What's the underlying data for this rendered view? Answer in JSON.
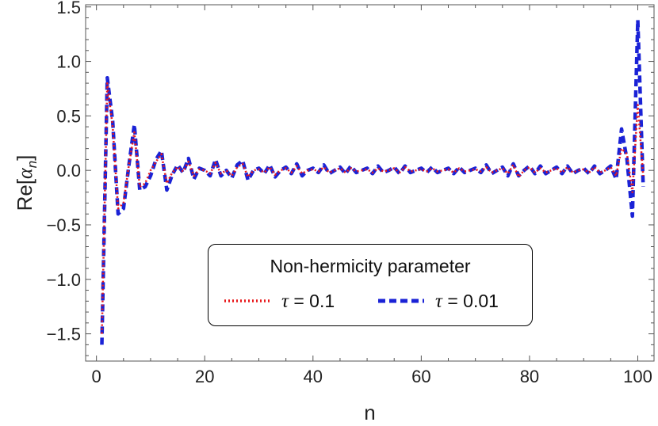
{
  "chart_data": {
    "type": "line",
    "title": "",
    "xlabel": "n",
    "ylabel_main": "Re[",
    "ylabel_symbol": "α",
    "ylabel_sub": "n",
    "ylabel_close": "]",
    "xlim": [
      -2,
      103
    ],
    "ylim": [
      -1.75,
      1.52
    ],
    "x_ticks": [
      0,
      20,
      40,
      60,
      80,
      100
    ],
    "y_ticks": [
      -1.5,
      -1.0,
      -0.5,
      0.0,
      0.5,
      1.0,
      1.5
    ],
    "x_tick_labels": [
      "0",
      "20",
      "40",
      "60",
      "80",
      "100"
    ],
    "y_tick_labels": [
      "-1.5",
      "-1.0",
      "-0.5",
      "0.0",
      "0.5",
      "1.0",
      "1.5"
    ],
    "legend": {
      "title": "Non-hermicity parameter",
      "placement": "lower-center"
    },
    "x": [
      1,
      2,
      3,
      4,
      5,
      6,
      7,
      8,
      9,
      10,
      11,
      12,
      13,
      14,
      15,
      16,
      17,
      18,
      19,
      20,
      21,
      22,
      23,
      24,
      25,
      26,
      27,
      28,
      29,
      30,
      31,
      32,
      33,
      34,
      35,
      36,
      37,
      38,
      39,
      40,
      41,
      42,
      43,
      44,
      45,
      46,
      47,
      48,
      49,
      50,
      51,
      52,
      53,
      54,
      55,
      56,
      57,
      58,
      59,
      60,
      61,
      62,
      63,
      64,
      65,
      66,
      67,
      68,
      69,
      70,
      71,
      72,
      73,
      74,
      75,
      76,
      77,
      78,
      79,
      80,
      81,
      82,
      83,
      84,
      85,
      86,
      87,
      88,
      89,
      90,
      91,
      92,
      93,
      94,
      95,
      96,
      97,
      98,
      99,
      100,
      101
    ],
    "series": [
      {
        "name": "τ = 0.1",
        "symbol": "τ",
        "value_label": "= 0.1",
        "color": "#e8191c",
        "style": "dotted",
        "values": [
          -1.5,
          0.8,
          0.4,
          -0.35,
          -0.3,
          0.05,
          0.35,
          -0.15,
          -0.12,
          0.0,
          0.08,
          0.15,
          -0.12,
          -0.02,
          0.03,
          -0.01,
          0.08,
          -0.05,
          0.01,
          0.0,
          -0.03,
          0.07,
          -0.03,
          0.0,
          -0.05,
          0.03,
          0.06,
          -0.06,
          0.0,
          0.01,
          -0.02,
          0.03,
          -0.04,
          0.0,
          0.02,
          -0.02,
          0.04,
          -0.03,
          0.0,
          0.01,
          -0.01,
          0.03,
          -0.02,
          0.0,
          0.02,
          -0.02,
          0.02,
          -0.01,
          0.0,
          0.01,
          -0.02,
          0.02,
          -0.01,
          0.0,
          0.02,
          -0.02,
          0.03,
          -0.01,
          0.0,
          0.01,
          -0.01,
          0.02,
          -0.01,
          0.0,
          0.01,
          -0.02,
          0.02,
          -0.01,
          0.0,
          0.01,
          -0.01,
          0.03,
          -0.02,
          0.0,
          0.02,
          -0.03,
          0.05,
          -0.06,
          0.0,
          0.03,
          -0.02,
          0.02,
          -0.02,
          0.0,
          0.02,
          -0.02,
          0.03,
          -0.02,
          0.0,
          0.01,
          -0.02,
          0.03,
          -0.02,
          0.0,
          0.03,
          -0.05,
          0.2,
          0.15,
          -0.2,
          0.6,
          -0.05
        ]
      },
      {
        "name": "τ = 0.01",
        "symbol": "τ",
        "value_label": "= 0.01",
        "color": "#1a22d6",
        "style": "dashed",
        "values": [
          -1.6,
          0.85,
          0.45,
          -0.4,
          -0.35,
          0.05,
          0.42,
          -0.18,
          -0.15,
          -0.05,
          0.1,
          0.18,
          -0.18,
          -0.04,
          0.05,
          -0.02,
          0.11,
          -0.08,
          0.02,
          0.0,
          -0.05,
          0.1,
          -0.05,
          0.0,
          -0.07,
          0.05,
          0.09,
          -0.09,
          0.0,
          0.02,
          -0.03,
          0.05,
          -0.06,
          0.0,
          0.03,
          -0.03,
          0.06,
          -0.05,
          0.0,
          0.02,
          -0.02,
          0.05,
          -0.03,
          0.0,
          0.03,
          -0.03,
          0.04,
          -0.02,
          0.0,
          0.02,
          -0.03,
          0.04,
          -0.02,
          0.0,
          0.03,
          -0.03,
          0.04,
          -0.02,
          0.0,
          0.02,
          -0.02,
          0.03,
          -0.02,
          0.0,
          0.02,
          -0.03,
          0.03,
          -0.02,
          0.0,
          0.02,
          -0.02,
          0.05,
          -0.03,
          0.0,
          0.03,
          -0.05,
          0.06,
          -0.05,
          0.0,
          0.04,
          -0.03,
          0.04,
          -0.03,
          0.0,
          0.03,
          -0.03,
          0.04,
          -0.03,
          0.0,
          0.02,
          -0.03,
          0.04,
          -0.03,
          0.0,
          0.04,
          -0.08,
          0.38,
          0.1,
          -0.42,
          1.38,
          -0.15
        ]
      }
    ]
  }
}
